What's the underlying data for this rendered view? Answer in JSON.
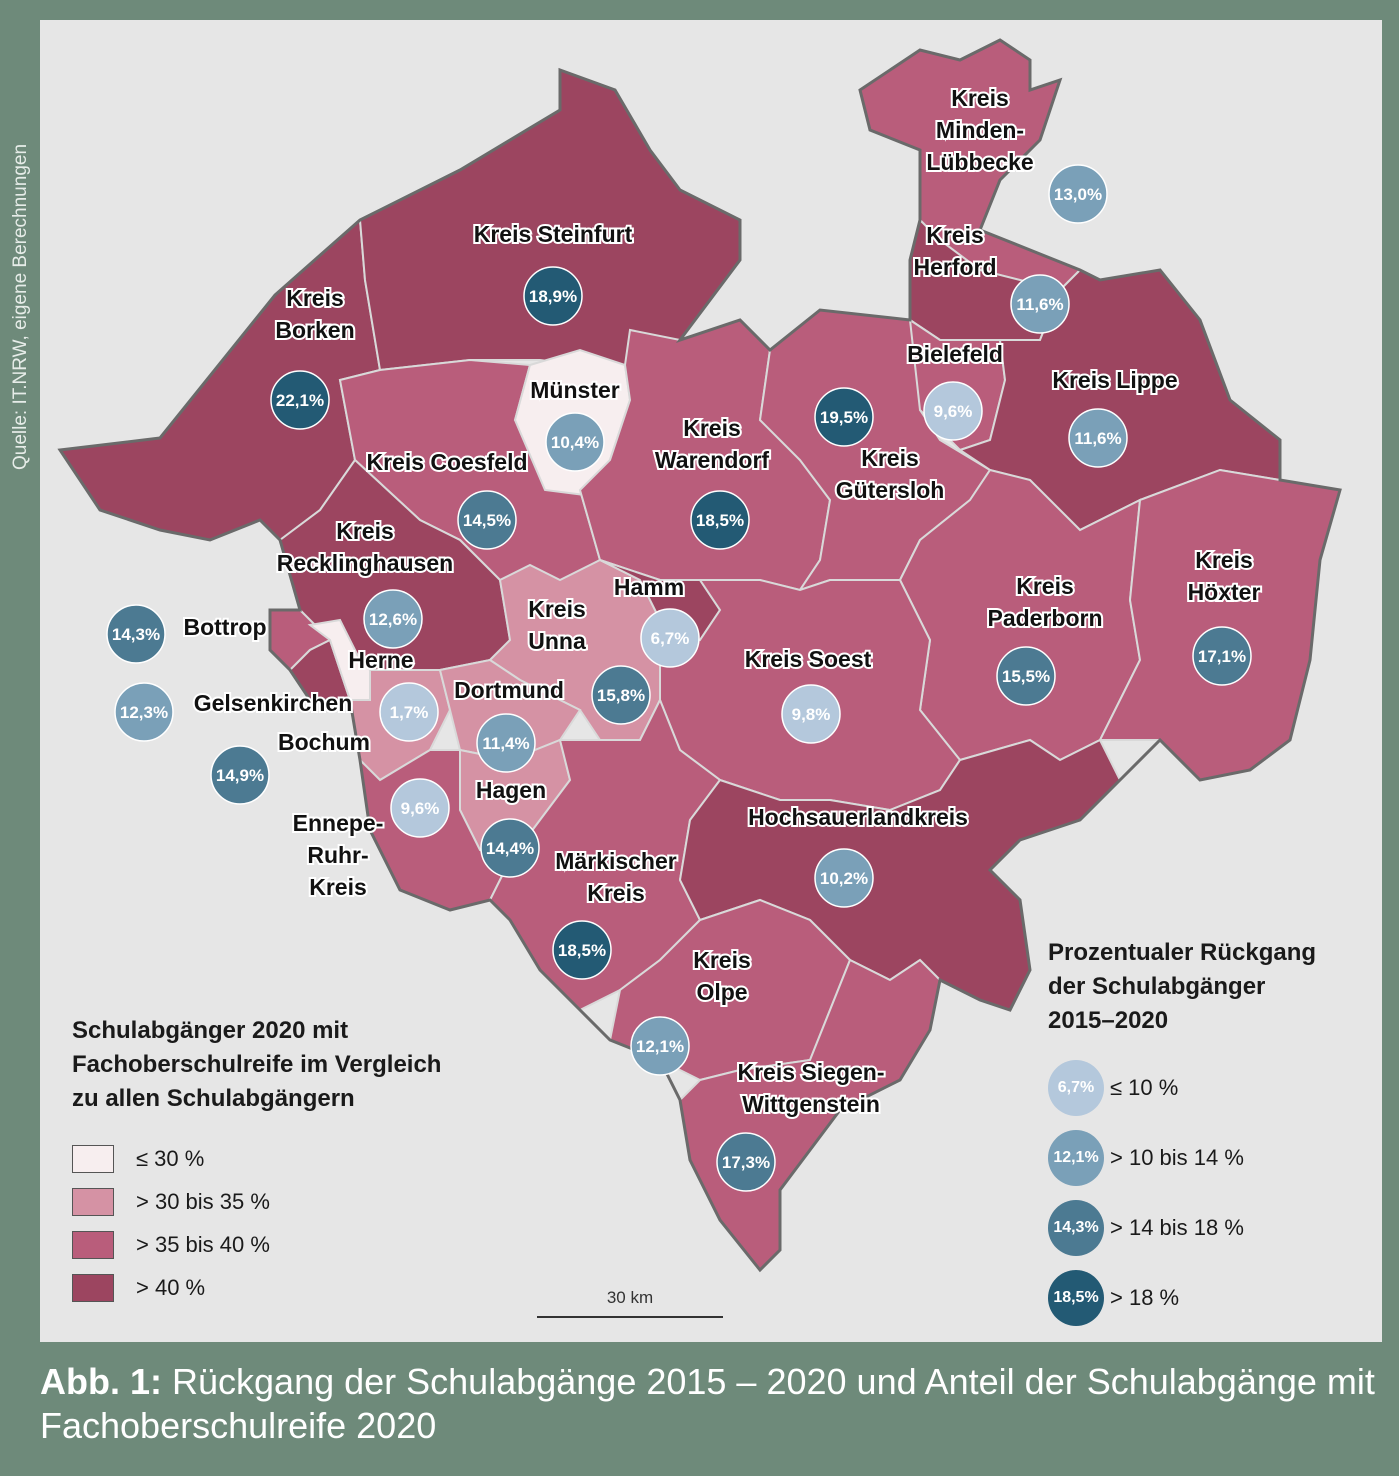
{
  "source": "Quelle: IT.NRW, eigene Berechnungen",
  "caption": {
    "prefix": "Abb. 1:",
    "text": " Rückgang der Schulabgänge 2015 – 2020 und Anteil der Schulabgänge mit Fachoberschulreife 2020"
  },
  "scale_label": "30 km",
  "colors": {
    "share": {
      "le30": "#f7eeef",
      "30to35": "#d592a4",
      "35to40": "#b95d7b",
      "gt40": "#9c4560"
    },
    "decline": {
      "le10": "#b4c8dc",
      "10to14": "#7aa0b8",
      "14to18": "#4c7a92",
      "gt18": "#235a74"
    }
  },
  "legend_share": {
    "title_lines": [
      "Schulabgänger 2020 mit",
      "Fachoberschulreife im Vergleich",
      "zu allen Schulabgängern"
    ],
    "items": [
      {
        "key": "le30",
        "label": "≤ 30 %"
      },
      {
        "key": "30to35",
        "label": "> 30 bis 35 %"
      },
      {
        "key": "35to40",
        "label": "> 35 bis 40 %"
      },
      {
        "key": "gt40",
        "label": "> 40 %"
      }
    ]
  },
  "legend_decline": {
    "title_lines": [
      "Prozentualer Rückgang",
      "der Schulabgänger",
      "2015–2020"
    ],
    "items": [
      {
        "key": "le10",
        "sample": "6,7%",
        "label": "≤ 10 %"
      },
      {
        "key": "10to14",
        "sample": "12,1%",
        "label": "> 10 bis 14 %"
      },
      {
        "key": "14to18",
        "sample": "14,3%",
        "label": "> 14 bis 18 %"
      },
      {
        "key": "gt18",
        "sample": "18,5%",
        "label": "> 18 %"
      }
    ]
  },
  "regions": [
    {
      "id": "minden",
      "label": [
        "Kreis",
        "Minden-",
        "Lübbecke"
      ],
      "share_class": "35to40",
      "decline": "13,0%",
      "decline_class": "10to14"
    },
    {
      "id": "herford",
      "label": [
        "Kreis",
        "Herford"
      ],
      "share_class": "gt40",
      "decline": "11,6%",
      "decline_class": "10to14"
    },
    {
      "id": "steinfurt",
      "label": [
        "Kreis Steinfurt"
      ],
      "share_class": "gt40",
      "decline": "18,9%",
      "decline_class": "gt18"
    },
    {
      "id": "borken",
      "label": [
        "Kreis",
        "Borken"
      ],
      "share_class": "gt40",
      "decline": "22,1%",
      "decline_class": "gt18"
    },
    {
      "id": "muenster",
      "label": [
        "Münster"
      ],
      "share_class": "le30",
      "decline": "10,4%",
      "decline_class": "10to14"
    },
    {
      "id": "bielefeld",
      "label": [
        "Bielefeld"
      ],
      "share_class": "35to40",
      "decline": "9,6%",
      "decline_class": "le10"
    },
    {
      "id": "lippe",
      "label": [
        "Kreis Lippe"
      ],
      "share_class": "gt40",
      "decline": "11,6%",
      "decline_class": "10to14"
    },
    {
      "id": "guetersloh",
      "label": [
        "Kreis",
        "Gütersloh"
      ],
      "share_class": "35to40",
      "decline": "19,5%",
      "decline_class": "gt18"
    },
    {
      "id": "warendorf",
      "label": [
        "Kreis",
        "Warendorf"
      ],
      "share_class": "35to40",
      "decline": "18,5%",
      "decline_class": "gt18"
    },
    {
      "id": "coesfeld",
      "label": [
        "Kreis Coesfeld"
      ],
      "share_class": "35to40",
      "decline": "14,5%",
      "decline_class": "14to18"
    },
    {
      "id": "recklinghausen",
      "label": [
        "Kreis",
        "Recklinghausen"
      ],
      "share_class": "gt40",
      "decline": "12,6%",
      "decline_class": "10to14"
    },
    {
      "id": "unna",
      "label": [
        "Kreis",
        "Unna"
      ],
      "share_class": "30to35",
      "decline": "15,8%",
      "decline_class": "14to18"
    },
    {
      "id": "hamm",
      "label": [
        "Hamm"
      ],
      "share_class": "gt40",
      "decline": "6,7%",
      "decline_class": "le10"
    },
    {
      "id": "soest",
      "label": [
        "Kreis Soest"
      ],
      "share_class": "35to40",
      "decline": "9,8%",
      "decline_class": "le10"
    },
    {
      "id": "paderborn",
      "label": [
        "Kreis",
        "Paderborn"
      ],
      "share_class": "35to40",
      "decline": "15,5%",
      "decline_class": "14to18"
    },
    {
      "id": "hoexter",
      "label": [
        "Kreis",
        "Höxter"
      ],
      "share_class": "35to40",
      "decline": "17,1%",
      "decline_class": "14to18"
    },
    {
      "id": "bottrop",
      "label": [
        "Bottrop"
      ],
      "share_class": "35to40",
      "decline": "14,3%",
      "decline_class": "14to18"
    },
    {
      "id": "gelsenkirchen",
      "label": [
        "Gelsenkirchen"
      ],
      "share_class": "gt40",
      "decline": "12,3%",
      "decline_class": "10to14"
    },
    {
      "id": "bochum",
      "label": [
        "Bochum"
      ],
      "share_class": "30to35",
      "decline": "14,9%",
      "decline_class": "14to18"
    },
    {
      "id": "herne",
      "label": [
        "Herne"
      ],
      "share_class": "le30",
      "decline": "1,7%",
      "decline_class": "le10"
    },
    {
      "id": "dortmund",
      "label": [
        "Dortmund"
      ],
      "share_class": "30to35",
      "decline": "11,4%",
      "decline_class": "10to14"
    },
    {
      "id": "hagen",
      "label": [
        "Hagen"
      ],
      "share_class": "30to35",
      "decline": "14,4%",
      "decline_class": "14to18"
    },
    {
      "id": "ennepe",
      "label": [
        "Ennepe-",
        "Ruhr-",
        "Kreis"
      ],
      "share_class": "35to40",
      "decline": "9,6%",
      "decline_class": "le10"
    },
    {
      "id": "maerkisch",
      "label": [
        "Märkischer",
        "Kreis"
      ],
      "share_class": "35to40",
      "decline": "18,5%",
      "decline_class": "gt18"
    },
    {
      "id": "hochsauerland",
      "label": [
        "Hochsauerlandkreis"
      ],
      "share_class": "gt40",
      "decline": "10,2%",
      "decline_class": "10to14"
    },
    {
      "id": "olpe",
      "label": [
        "Kreis",
        "Olpe"
      ],
      "share_class": "35to40",
      "decline": "12,1%",
      "decline_class": "10to14"
    },
    {
      "id": "siegen",
      "label": [
        "Kreis Siegen-",
        "Wittgenstein"
      ],
      "share_class": "35to40",
      "decline": "17,3%",
      "decline_class": "14to18"
    }
  ]
}
